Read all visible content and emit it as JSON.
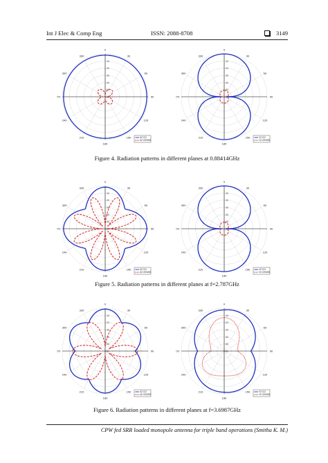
{
  "header": {
    "journal": "Int J Elec & Comp Eng",
    "issn": "ISSN: 2088-8708",
    "page_number": "3149"
  },
  "figures": [
    {
      "caption": "Figure 4. Radiation patterns in different planes at 0.88414GHz",
      "plots": [
        {
          "pattern_co": "circle",
          "pattern_cross": "small-petal",
          "legend": [
            "XZ CO",
            "XZ CROSS"
          ]
        },
        {
          "pattern_co": "figure-eight",
          "pattern_cross": "small-blob",
          "legend": [
            "YZ CO",
            "YZ CROSS"
          ]
        }
      ]
    },
    {
      "caption": "Figure 5. Radiation patterns in different planes at f=2.787GHz",
      "plots": [
        {
          "pattern_co": "four-lobe",
          "pattern_cross": "eight-petal",
          "legend": [
            "XZ CO",
            "XZ CROSS"
          ]
        },
        {
          "pattern_co": "figure-eight",
          "pattern_cross": "small-blob",
          "legend": [
            "YZ CO",
            "YZ CROSS"
          ]
        }
      ]
    },
    {
      "caption": "Figure 6. Radiation patterns in different planes at f=3.6987GHz",
      "plots": [
        {
          "pattern_co": "eight-lobe",
          "pattern_cross": "multi-petal",
          "legend": [
            "XZ CO",
            "XZ CROSS"
          ]
        },
        {
          "pattern_co": "heart",
          "pattern_cross": "dotted-blob",
          "legend": [
            "YZ CO",
            "YZ CROSS"
          ]
        }
      ]
    }
  ],
  "polar_axis": {
    "angle_labels": [
      "0",
      "30",
      "60",
      "90",
      "120",
      "150",
      "180",
      "210",
      "240",
      "270",
      "300",
      "330"
    ],
    "radial_labels": [
      "0",
      "-10",
      "-20",
      "-30",
      "-40",
      "-50",
      "-60"
    ]
  },
  "colors": {
    "co": "#1f2fbf",
    "cross": "#d62020",
    "grid": "#999999",
    "axis": "#111111"
  },
  "footer": "CPW fed SRR loaded monopole antenna for triple band operations (Smitha K. M.)"
}
